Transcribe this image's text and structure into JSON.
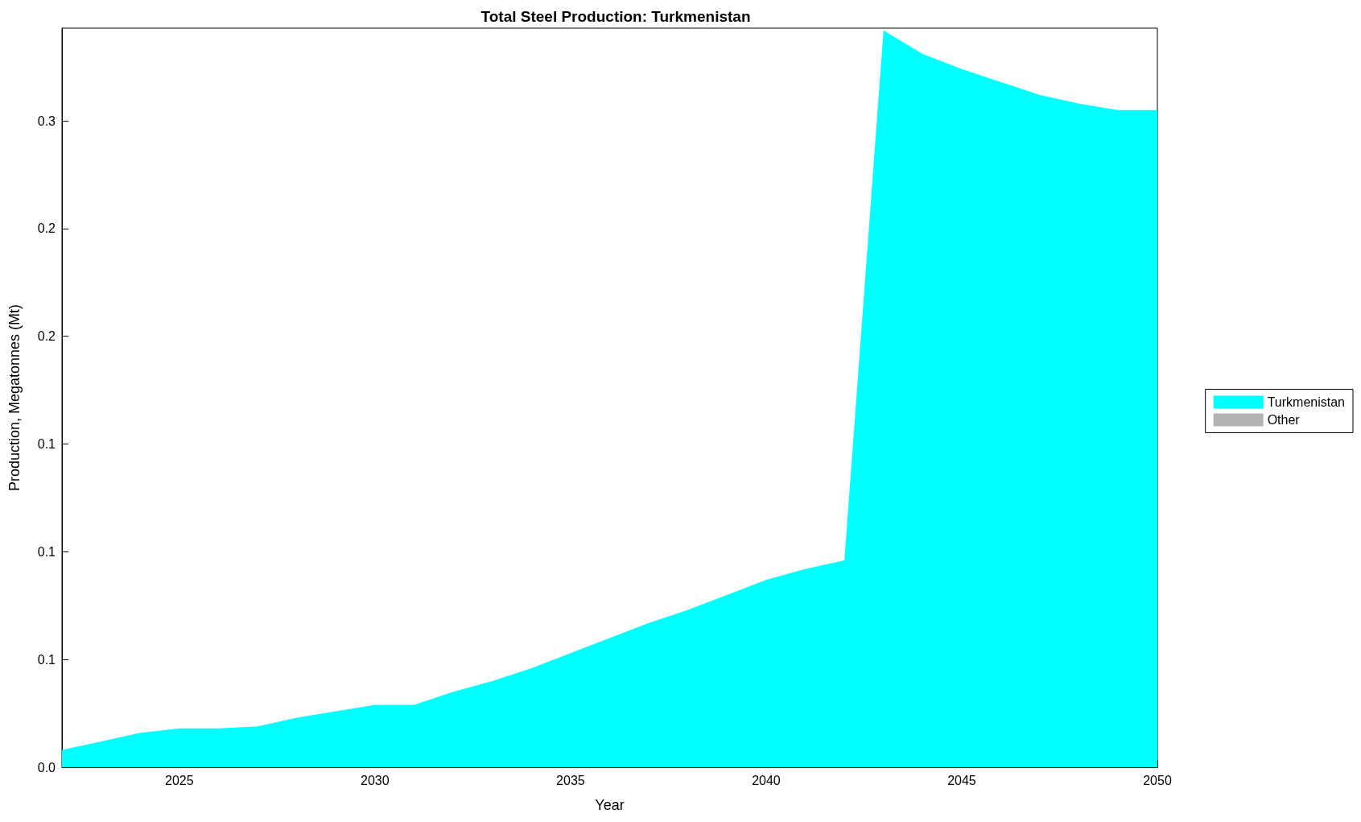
{
  "chart_data": {
    "type": "area",
    "title": "Total Steel Production: Turkmenistan",
    "xlabel": "Year",
    "ylabel": "Production, Megatonnes (Mt)",
    "x": [
      2022,
      2023,
      2024,
      2025,
      2026,
      2027,
      2028,
      2029,
      2030,
      2031,
      2032,
      2033,
      2034,
      2035,
      2036,
      2037,
      2038,
      2039,
      2040,
      2041,
      2042,
      2043,
      2044,
      2045,
      2046,
      2047,
      2048,
      2049,
      2050
    ],
    "series": [
      {
        "name": "Turkmenistan",
        "color": "#00ffff",
        "values": [
          0.008,
          0.012,
          0.016,
          0.018,
          0.018,
          0.019,
          0.023,
          0.026,
          0.029,
          0.029,
          0.035,
          0.04,
          0.046,
          0.053,
          0.06,
          0.067,
          0.073,
          0.08,
          0.087,
          0.092,
          0.096,
          0.342,
          0.331,
          0.324,
          0.318,
          0.312,
          0.308,
          0.305,
          0.305
        ]
      },
      {
        "name": "Other",
        "color": "#b3b3b3",
        "values": [
          null,
          null,
          null,
          null,
          null,
          null,
          null,
          null,
          null,
          null,
          null,
          null,
          null,
          null,
          null,
          null,
          null,
          null,
          null,
          null,
          null,
          null,
          null,
          null,
          null,
          null,
          null,
          null,
          null
        ]
      }
    ],
    "xlim": [
      2022,
      2050
    ],
    "xticks": [
      2025,
      2030,
      2035,
      2040,
      2045,
      2050
    ],
    "ylim": [
      0,
      0.343
    ],
    "yticks": [
      {
        "value": 0,
        "label": "0.0"
      },
      {
        "value": 0.05,
        "label": "0.1"
      },
      {
        "value": 0.1,
        "label": "0.1"
      },
      {
        "value": 0.15,
        "label": "0.1"
      },
      {
        "value": 0.2,
        "label": "0.2"
      },
      {
        "value": 0.25,
        "label": "0.2"
      },
      {
        "value": 0.3,
        "label": "0.3"
      }
    ],
    "grid": false,
    "legend": "right"
  }
}
